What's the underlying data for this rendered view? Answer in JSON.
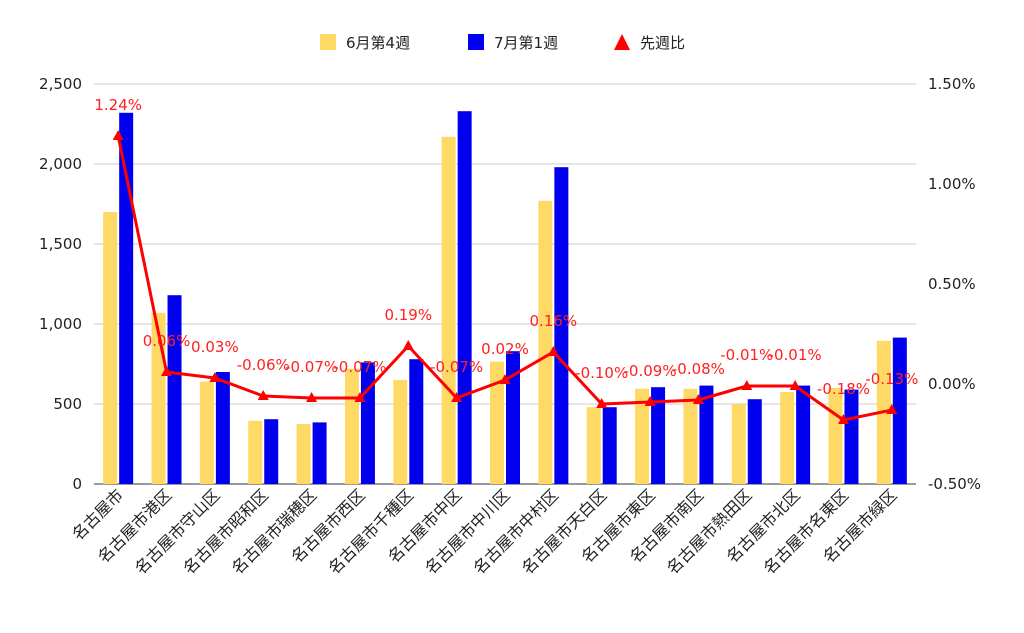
{
  "chart_data": {
    "type": "bar",
    "categories": [
      "名古屋市",
      "名古屋市港区",
      "名古屋市守山区",
      "名古屋市昭和区",
      "名古屋市瑞穂区",
      "名古屋市西区",
      "名古屋市千種区",
      "名古屋市中区",
      "名古屋市中川区",
      "名古屋市中村区",
      "名古屋市天白区",
      "名古屋市東区",
      "名古屋市南区",
      "名古屋市熱田区",
      "名古屋市北区",
      "名古屋市名東区",
      "名古屋市緑区"
    ],
    "series": [
      {
        "name": "6月第4週",
        "type": "bar",
        "axis": "left",
        "color": "#ffd966",
        "values": [
          1700,
          1070,
          640,
          395,
          375,
          720,
          650,
          2170,
          765,
          1770,
          480,
          595,
          595,
          500,
          575,
          600,
          895
        ]
      },
      {
        "name": "7月第1週",
        "type": "bar",
        "axis": "left",
        "color": "#0000ee",
        "values": [
          2320,
          1180,
          700,
          405,
          385,
          760,
          780,
          2330,
          830,
          1980,
          480,
          605,
          615,
          530,
          615,
          590,
          915
        ]
      },
      {
        "name": "先週比",
        "type": "line",
        "axis": "right",
        "color": "#ff0000",
        "values": [
          1.24,
          0.06,
          0.03,
          -0.06,
          -0.07,
          -0.07,
          0.19,
          -0.07,
          0.02,
          0.16,
          -0.1,
          -0.09,
          -0.08,
          -0.01,
          -0.01,
          -0.18,
          -0.13
        ],
        "labels": [
          "1.24%",
          "0.06%",
          "0.03%",
          "-0.06%",
          "-0.07%",
          "-0.07%",
          "0.19%",
          "-0.07%",
          "0.02%",
          "0.16%",
          "-0.10%",
          "-0.09%",
          "-0.08%",
          "-0.01%",
          "-0.01%",
          "-0.18%",
          "-0.13%"
        ]
      }
    ],
    "y_left": {
      "min": 0,
      "max": 2500,
      "ticks": [
        "0",
        "500",
        "1,000",
        "1,500",
        "2,000",
        "2,500"
      ],
      "tick_values": [
        0,
        500,
        1000,
        1500,
        2000,
        2500
      ]
    },
    "y_right": {
      "min": -0.5,
      "max": 1.5,
      "ticks": [
        "-0.50%",
        "0.00%",
        "0.50%",
        "1.00%",
        "1.50%"
      ],
      "tick_values": [
        -0.5,
        0,
        0.5,
        1.0,
        1.5
      ]
    },
    "grid": true,
    "legend_position": "top-center"
  }
}
